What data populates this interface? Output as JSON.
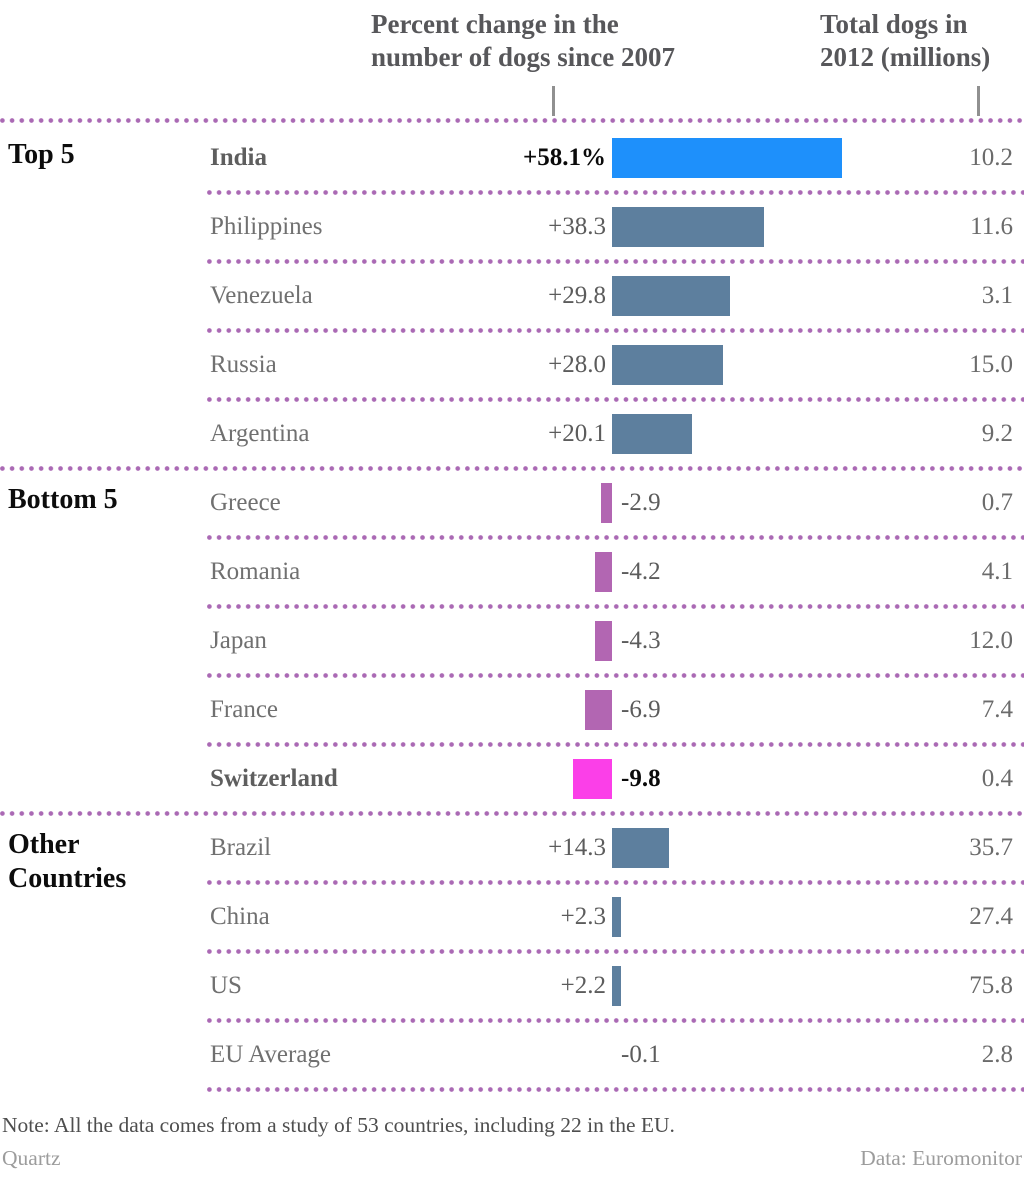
{
  "chart_data": {
    "type": "bar",
    "orientation": "horizontal",
    "column_headers": [
      "Percent change in the number of dogs since 2007",
      "Total dogs in 2012 (millions)"
    ],
    "colors": {
      "positive_bar": "#5d7f9e",
      "negative_bar": "#b266b2",
      "highlight_positive": "#1e90fb",
      "highlight_negative": "#fb3fe8",
      "dots": "#aa69b4",
      "tick": "#909090"
    },
    "groups": [
      {
        "label": "Top 5",
        "rows": [
          {
            "country": "India",
            "change": 58.1,
            "change_label": "+58.1%",
            "total": 10.2,
            "total_label": "10.2",
            "bold": true,
            "color_key": "highlight_positive"
          },
          {
            "country": "Philippines",
            "change": 38.3,
            "change_label": "+38.3",
            "total": 11.6,
            "total_label": "11.6"
          },
          {
            "country": "Venezuela",
            "change": 29.8,
            "change_label": "+29.8",
            "total": 3.1,
            "total_label": "3.1"
          },
          {
            "country": "Russia",
            "change": 28.0,
            "change_label": "+28.0",
            "total": 15.0,
            "total_label": "15.0"
          },
          {
            "country": "Argentina",
            "change": 20.1,
            "change_label": "+20.1",
            "total": 9.2,
            "total_label": "9.2"
          }
        ]
      },
      {
        "label": "Bottom 5",
        "rows": [
          {
            "country": "Greece",
            "change": -2.9,
            "change_label": "-2.9",
            "total": 0.7,
            "total_label": "0.7"
          },
          {
            "country": "Romania",
            "change": -4.2,
            "change_label": "-4.2",
            "total": 4.1,
            "total_label": "4.1"
          },
          {
            "country": "Japan",
            "change": -4.3,
            "change_label": "-4.3",
            "total": 12.0,
            "total_label": "12.0"
          },
          {
            "country": "France",
            "change": -6.9,
            "change_label": "-6.9",
            "total": 7.4,
            "total_label": "7.4"
          },
          {
            "country": "Switzerland",
            "change": -9.8,
            "change_label": "-9.8",
            "total": 0.4,
            "total_label": "0.4",
            "bold": true,
            "color_key": "highlight_negative"
          }
        ]
      },
      {
        "label": "Other Countries",
        "rows": [
          {
            "country": "Brazil",
            "change": 14.3,
            "change_label": "+14.3",
            "total": 35.7,
            "total_label": "35.7"
          },
          {
            "country": "China",
            "change": 2.3,
            "change_label": "+2.3",
            "total": 27.4,
            "total_label": "27.4"
          },
          {
            "country": "US",
            "change": 2.2,
            "change_label": "+2.2",
            "total": 75.8,
            "total_label": "75.8"
          },
          {
            "country": "EU Average",
            "change": -0.1,
            "change_label": "-0.1",
            "total": 2.8,
            "total_label": "2.8"
          }
        ]
      }
    ]
  },
  "footer": {
    "note": "Note: All the data comes from a study of 53 countries, including 22 in the EU.",
    "brand": "Quartz",
    "source": "Data: Euromonitor"
  }
}
